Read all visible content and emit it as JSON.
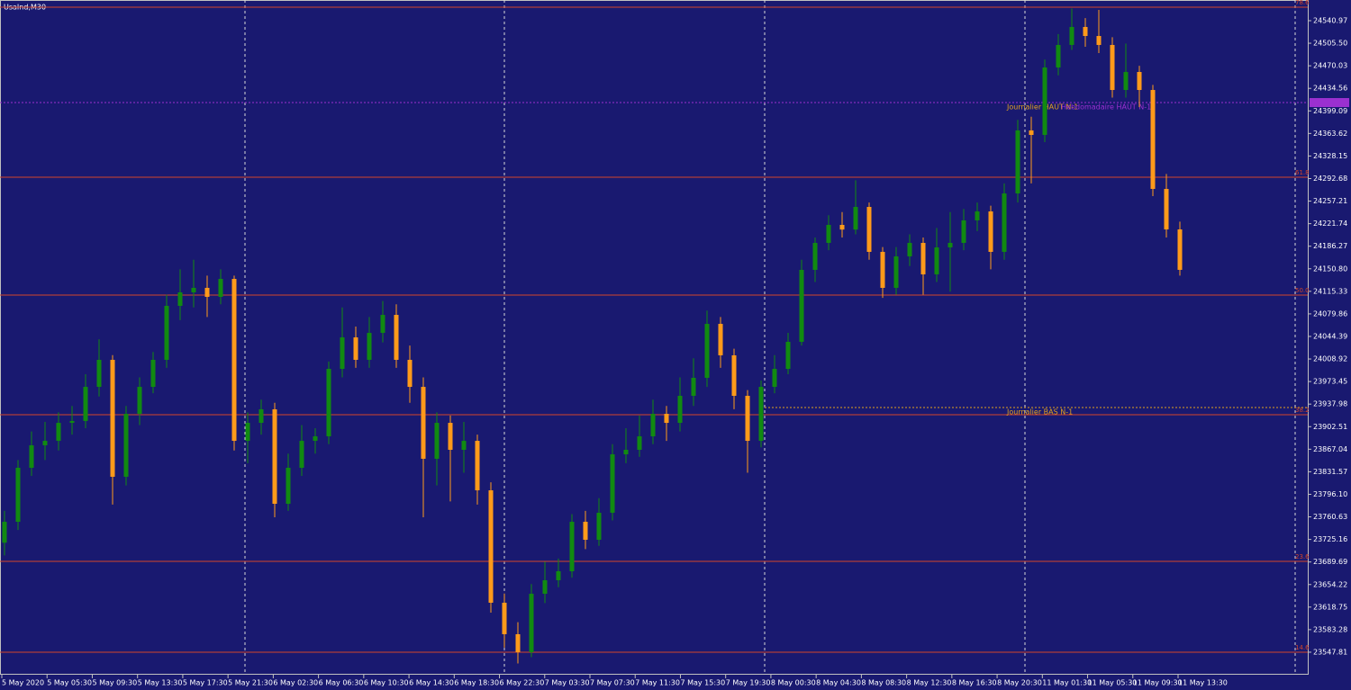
{
  "chart_data": {
    "type": "candlestick",
    "title": "UsaInd,M30",
    "up_color": "#118a11",
    "down_color": "#ff9a1a",
    "level_color": "#d2452a",
    "ylim": [
      23512.4,
      24573.5
    ],
    "yticks": [
      24540.97,
      {
        "value": 24505.5,
        "label": "24505.50"
      },
      24470.03,
      24434.56,
      24399.09,
      24363.62,
      24328.15,
      24292.68,
      24257.21,
      24221.74,
      24186.27,
      {
        "value": 24150.8,
        "label": "24150.80"
      },
      24115.33,
      24079.86,
      24044.39,
      24008.92,
      23973.45,
      23937.98,
      23902.51,
      23867.04,
      23831.57,
      {
        "value": 23796.1,
        "label": "23796.10"
      },
      23760.63,
      23725.16,
      23689.69,
      23654.22,
      23618.75,
      23583.28,
      23547.81
    ],
    "xtick_labels": [
      "5 May 2020",
      "5 May 05:30",
      "5 May 09:30",
      "5 May 13:30",
      "5 May 17:30",
      "5 May 21:30",
      "6 May 02:30",
      "6 May 06:30",
      "6 May 10:30",
      "6 May 14:30",
      "6 May 18:30",
      "6 May 22:30",
      "7 May 03:30",
      "7 May 07:30",
      "7 May 11:30",
      "7 May 15:30",
      "7 May 19:30",
      "8 May 00:30",
      "8 May 04:30",
      "8 May 08:30",
      "8 May 12:30",
      "8 May 16:30",
      "8 May 20:30",
      "11 May 01:30",
      "11 May 05:30",
      "11 May 09:30",
      "11 May 13:30"
    ],
    "open": [
      23720.0,
      23752.9,
      23837.8,
      23873.2,
      23880.2,
      23908.5,
      23911.4,
      23965.1,
      24007.6,
      23823.7,
      23922.7,
      23965.1,
      24007.6,
      24092.5,
      24113.7,
      24120.8,
      24106.6,
      24134.9,
      23880.2,
      23908.5,
      23929.8,
      23781.2,
      23837.8,
      23880.2,
      23887.3,
      23993.4,
      24042.9,
      24007.6,
      24050.0,
      24078.3,
      24007.6,
      23965.1,
      23852.0,
      23908.5,
      23866.1,
      23880.2,
      23802.4,
      23625.6,
      23576.1,
      23547.8,
      23639.7,
      23661.0,
      23675.1,
      23752.9,
      23724.6,
      23767.1,
      23859.0,
      23866.1,
      23887.3,
      23922.7,
      23908.5,
      23951.0,
      23979.3,
      24064.2,
      24014.7,
      23951.0,
      23880.2,
      23965.1,
      23993.4,
      24035.9,
      24149.1,
      24191.5,
      24219.8,
      24212.5,
      24248.1,
      24177.4,
      24120.8,
      24170.3,
      24191.5,
      24142.0,
      24184.4,
      24191.5,
      24226.9,
      24241.0,
      24177.4,
      24269.3,
      24368.4,
      24361.3,
      24467.4,
      24502.8,
      24531.1,
      24516.9,
      24502.8,
      24432.0,
      24460.3,
      24432.0,
      24276.4,
      24212.7
    ],
    "high": [
      23770,
      23850,
      23895,
      23910,
      23925,
      23935,
      23985,
      24040,
      24015,
      23935,
      23980,
      24020,
      24110,
      24150,
      24165,
      24140,
      24150,
      24140,
      23925,
      23945,
      23940,
      23860,
      23905,
      23900,
      24005,
      24090,
      24060,
      24075,
      24100,
      24095,
      24030,
      23980,
      23925,
      23920,
      23910,
      23890,
      23815,
      23640,
      23595,
      23655,
      23690,
      23695,
      23765,
      23770,
      23790,
      23875,
      23900,
      23920,
      23945,
      23935,
      23980,
      24010,
      24085,
      24075,
      24025,
      23960,
      23975,
      24015,
      24050,
      24165,
      24200,
      24235,
      24240,
      24290,
      24255,
      24185,
      24185,
      24205,
      24200,
      24215,
      24240,
      24245,
      24255,
      24250,
      24285,
      24385,
      24390,
      24480,
      24520,
      24560,
      24545,
      24558,
      24515,
      24505,
      24470,
      24440,
      24300,
      24225
    ],
    "low": [
      23700,
      23740,
      23825,
      23850,
      23865,
      23890,
      23900,
      23950,
      23780,
      23810,
      23905,
      23955,
      23995,
      24070,
      24090,
      24075,
      24095,
      23865,
      23845,
      23890,
      23760,
      23770,
      23825,
      23860,
      23875,
      23980,
      23995,
      23995,
      24035,
      23995,
      23940,
      23760,
      23810,
      23785,
      23830,
      23780,
      23610,
      23555,
      23530,
      23540,
      23625,
      23650,
      23665,
      23710,
      23715,
      23755,
      23845,
      23855,
      23875,
      23880,
      23895,
      23935,
      23965,
      23995,
      23930,
      23830,
      23870,
      23955,
      23985,
      24030,
      24130,
      24180,
      24200,
      24205,
      24165,
      24105,
      24110,
      24155,
      24110,
      24130,
      24115,
      24180,
      24210,
      24150,
      24165,
      24255,
      24285,
      24350,
      24455,
      24495,
      24500,
      24490,
      24420,
      24420,
      24405,
      24265,
      24200,
      24140
    ],
    "close": [
      23752.9,
      23837.8,
      23873.2,
      23880.2,
      23908.5,
      23911.4,
      23965.1,
      24007.6,
      23823.7,
      23922.7,
      23965.1,
      24007.6,
      24092.5,
      24113.7,
      24120.8,
      24106.6,
      24134.9,
      23880.2,
      23908.5,
      23929.8,
      23781.2,
      23837.8,
      23880.2,
      23887.3,
      23993.4,
      24042.9,
      24007.6,
      24050.0,
      24078.3,
      24007.6,
      23965.1,
      23852.0,
      23908.5,
      23866.1,
      23880.2,
      23802.4,
      23625.6,
      23576.1,
      23547.8,
      23639.7,
      23661.0,
      23675.1,
      23752.9,
      23724.6,
      23767.1,
      23859.0,
      23866.1,
      23887.3,
      23922.7,
      23908.5,
      23951.0,
      23979.3,
      24064.2,
      24014.7,
      23951.0,
      23880.2,
      23965.1,
      23993.4,
      24035.9,
      24149.1,
      24191.5,
      24219.8,
      24212.5,
      24248.1,
      24177.4,
      24120.8,
      24170.3,
      24191.5,
      24142.0,
      24184.4,
      24191.5,
      24226.9,
      24241.0,
      24177.4,
      24269.3,
      24368.4,
      24361.3,
      24467.4,
      24502.8,
      24531.1,
      24516.9,
      24502.8,
      24432.0,
      24460.3,
      24432.0,
      24276.4,
      24212.7,
      24149.1
    ],
    "levels": [
      {
        "label": "78.6",
        "value": 24562.2
      },
      {
        "label": "61.8",
        "value": 24294.8
      },
      {
        "label": "50.0",
        "value": 24109.4
      },
      {
        "label": "38.2",
        "value": 23921.3
      },
      {
        "label": "23.6",
        "value": 23690.7
      },
      {
        "label": "14.6",
        "value": 23547.8
      }
    ],
    "reference_lines": [
      {
        "name": "Journalier HAUT N-1",
        "value": 24412.2,
        "color": "#e0a020"
      },
      {
        "name": "Hebdomadaire HAUT N-1",
        "value": 24412.2,
        "color": "#9b30d0"
      },
      {
        "name": "Journalier BAS N-1",
        "value": 23932.6,
        "color": "#e0a020"
      }
    ]
  }
}
